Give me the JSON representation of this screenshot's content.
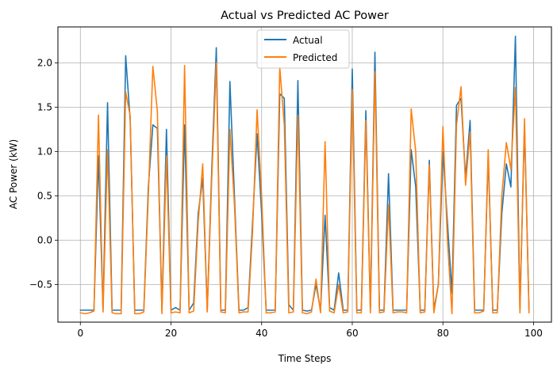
{
  "chart_data": {
    "type": "line",
    "title": "Actual vs Predicted AC Power",
    "xlabel": "Time Steps",
    "ylabel": "AC Power (kW)",
    "xlim": [
      -4.95,
      103.95
    ],
    "ylim": [
      -0.925,
      2.405
    ],
    "xticks": [
      0,
      20,
      40,
      60,
      80,
      100
    ],
    "yticks": [
      -0.5,
      0.0,
      0.5,
      1.0,
      1.5,
      2.0
    ],
    "xtick_labels": [
      "0",
      "20",
      "40",
      "60",
      "80",
      "100"
    ],
    "ytick_labels": [
      "−0.5",
      "0.0",
      "0.5",
      "1.0",
      "1.5",
      "2.0"
    ],
    "grid": true,
    "legend_position": "top-center",
    "series": [
      {
        "name": "Actual",
        "color": "#1f77b4",
        "values": [
          -0.79,
          -0.79,
          -0.79,
          -0.79,
          0.95,
          -0.79,
          1.55,
          -0.79,
          -0.79,
          -0.79,
          2.08,
          1.35,
          -0.79,
          -0.79,
          -0.79,
          0.6,
          1.3,
          1.26,
          -0.79,
          1.25,
          -0.79,
          -0.76,
          -0.79,
          1.3,
          -0.79,
          -0.71,
          0.3,
          0.7,
          -0.79,
          0.8,
          2.17,
          -0.79,
          -0.79,
          1.79,
          0.5,
          -0.79,
          -0.79,
          -0.76,
          0.2,
          1.2,
          0.3,
          -0.79,
          -0.79,
          -0.79,
          1.65,
          1.6,
          -0.73,
          -0.79,
          1.8,
          -0.79,
          -0.8,
          -0.79,
          -0.5,
          -0.79,
          0.28,
          -0.76,
          -0.79,
          -0.37,
          -0.79,
          -0.79,
          1.93,
          -0.79,
          -0.79,
          1.46,
          -0.79,
          2.12,
          -0.79,
          -0.79,
          0.75,
          -0.79,
          -0.79,
          -0.79,
          -0.79,
          1.02,
          0.6,
          -0.79,
          -0.79,
          0.9,
          -0.79,
          -0.5,
          1.0,
          0.2,
          -0.6,
          1.52,
          1.6,
          0.7,
          1.35,
          -0.79,
          -0.79,
          -0.79,
          0.95,
          -0.79,
          -0.79,
          0.3,
          0.86,
          0.6,
          2.3,
          -0.79,
          1.3,
          -0.79
        ]
      },
      {
        "name": "Predicted",
        "color": "#ff7f0e",
        "values": [
          -0.82,
          -0.83,
          -0.82,
          -0.8,
          1.41,
          -0.81,
          1.02,
          -0.82,
          -0.83,
          -0.83,
          1.67,
          1.4,
          -0.83,
          -0.83,
          -0.81,
          0.5,
          1.96,
          1.45,
          -0.83,
          0.95,
          -0.82,
          -0.81,
          -0.82,
          1.97,
          -0.82,
          -0.8,
          0.2,
          0.86,
          -0.81,
          0.7,
          2.0,
          -0.81,
          -0.82,
          1.25,
          0.4,
          -0.82,
          -0.81,
          -0.81,
          0.1,
          1.47,
          0.5,
          -0.82,
          -0.82,
          -0.81,
          1.95,
          1.3,
          -0.82,
          -0.81,
          1.41,
          -0.82,
          -0.83,
          -0.81,
          -0.44,
          -0.82,
          1.11,
          -0.8,
          -0.82,
          -0.5,
          -0.82,
          -0.81,
          1.7,
          -0.82,
          -0.82,
          1.35,
          -0.82,
          1.9,
          -0.82,
          -0.81,
          0.4,
          -0.82,
          -0.81,
          -0.81,
          -0.82,
          1.48,
          1.0,
          -0.82,
          -0.81,
          0.85,
          -0.82,
          -0.5,
          1.28,
          0.0,
          -0.83,
          1.3,
          1.73,
          0.62,
          1.22,
          -0.82,
          -0.82,
          -0.8,
          1.02,
          -0.82,
          -0.82,
          0.5,
          1.1,
          0.8,
          1.72,
          -0.82,
          1.37,
          -0.82
        ]
      }
    ]
  }
}
